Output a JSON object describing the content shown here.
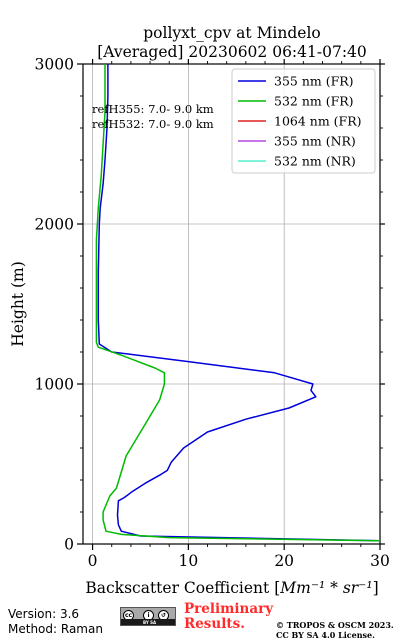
{
  "chart_data": {
    "type": "line",
    "title_line1": "pollyxt_cpv at Mindelo",
    "title_line2": "[Averaged] 20230602 06:41-07:40",
    "xlabel": "Backscatter Coefficient [",
    "xlabel_units": "Mm⁻¹ * sr⁻¹",
    "xlabel_close": "]",
    "ylabel": "Height (m)",
    "xlim": [
      -1,
      30
    ],
    "ylim": [
      0,
      3000
    ],
    "xticks": [
      "0",
      "10",
      "20",
      "30"
    ],
    "yticks": [
      "0",
      "1000",
      "2000",
      "3000"
    ],
    "grid": true,
    "legend_position": "top-right",
    "annotations": [
      "refH355:  7.0- 9.0 km",
      "refH532:  7.0- 9.0 km"
    ],
    "series": [
      {
        "name": "355 nm (FR)",
        "color": "#0000dd",
        "x": [
          30,
          5,
          3,
          2.7,
          2.6,
          2.7,
          3.3,
          4.2,
          5.5,
          7,
          7.8,
          8.2,
          9.5,
          12,
          16,
          20.5,
          23.3,
          22.8,
          23,
          19,
          10,
          2,
          0.7,
          0.6,
          0.6,
          0.7,
          0.8,
          1.1,
          1.3,
          1.5,
          1.6,
          1.6
        ],
        "y": [
          20,
          50,
          80,
          120,
          180,
          270,
          290,
          330,
          380,
          430,
          460,
          510,
          600,
          700,
          780,
          850,
          920,
          960,
          1000,
          1070,
          1140,
          1200,
          1250,
          1400,
          1700,
          2000,
          2100,
          2250,
          2400,
          2600,
          2800,
          3000
        ]
      },
      {
        "name": "532 nm (FR)",
        "color": "#00bb00",
        "x": [
          30,
          8,
          3,
          1.4,
          1.1,
          1.1,
          1.8,
          2.5,
          3,
          3.5,
          4.5,
          5.5,
          7,
          7.5,
          7.5,
          6.5,
          3,
          0.6,
          0.4,
          0.4,
          0.4,
          0.6,
          0.9,
          1.1,
          1.3,
          1.3
        ],
        "y": [
          20,
          40,
          60,
          80,
          150,
          200,
          300,
          350,
          450,
          550,
          650,
          750,
          900,
          1000,
          1070,
          1100,
          1180,
          1230,
          1260,
          1700,
          1900,
          2100,
          2300,
          2500,
          2700,
          3000
        ]
      },
      {
        "name": "1064 nm (FR)",
        "color": "#dd2222",
        "x": [],
        "y": []
      },
      {
        "name": "355 nm (NR)",
        "color": "#b44be1",
        "x": [],
        "y": []
      },
      {
        "name": "532 nm (NR)",
        "color": "#55eecc",
        "x": [],
        "y": []
      }
    ]
  },
  "footer": {
    "version": "Version: 3.6",
    "method": "Method: Raman",
    "preliminary_line1": "Preliminary",
    "preliminary_line2": "Results.",
    "copyright_line1": "© TROPOS & OSCM 2023.",
    "copyright_line2": "CC BY SA 4.0 License.",
    "license_badge_text": "BY SA"
  }
}
